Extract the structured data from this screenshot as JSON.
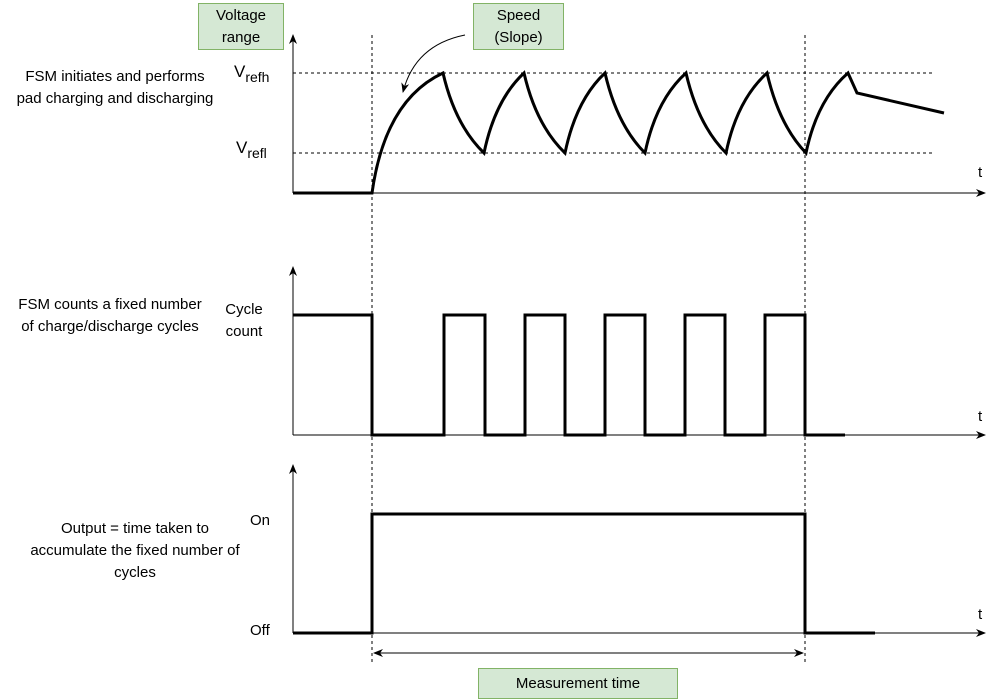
{
  "boxes": {
    "voltage_range": "Voltage range",
    "speed": "Speed (Slope)",
    "measurement_time": "Measurement time"
  },
  "rows": [
    {
      "description": "FSM initiates and performs pad charging and discharging",
      "axis_label": "t"
    },
    {
      "description": "FSM counts a fixed number of charge/discharge cycles",
      "y_label": "Cycle count",
      "axis_label": "t"
    },
    {
      "description": "Output = time taken to accumulate the fixed number of cycles",
      "on_label": "On",
      "off_label": "Off",
      "axis_label": "t"
    }
  ],
  "levels": {
    "high_main": "V",
    "high_sub": "refh",
    "low_main": "V",
    "low_sub": "refl"
  },
  "colors": {
    "box_fill": "#d5e8d4",
    "box_border": "#82b366",
    "line": "#000000"
  }
}
